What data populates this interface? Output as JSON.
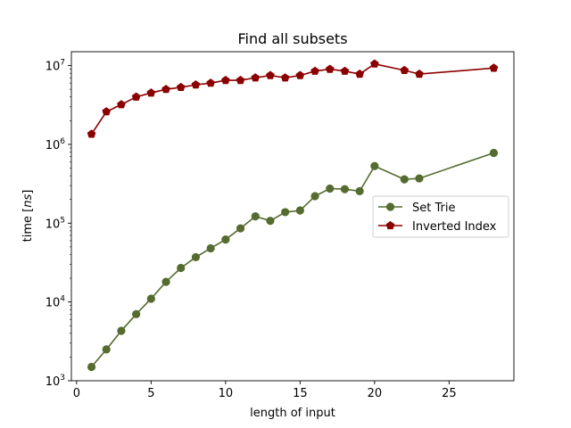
{
  "chart_data": {
    "type": "line",
    "title": "Find all subsets",
    "xlabel": "length of input",
    "ylabel_prefix": "time [",
    "ylabel_unit": "ns",
    "ylabel_suffix": "]",
    "x_scale": "linear",
    "y_scale": "log",
    "xlim": [
      -0.35,
      29.35
    ],
    "ylim": [
      1000,
      15000000
    ],
    "x_ticks": [
      0,
      5,
      10,
      15,
      20,
      25
    ],
    "x_tick_labels": [
      "0",
      "5",
      "10",
      "15",
      "20",
      "25"
    ],
    "y_ticks": [
      1000,
      10000,
      100000,
      1000000,
      10000000
    ],
    "y_tick_labels": [
      {
        "base": "10",
        "exp": "3"
      },
      {
        "base": "10",
        "exp": "4"
      },
      {
        "base": "10",
        "exp": "5"
      },
      {
        "base": "10",
        "exp": "6"
      },
      {
        "base": "10",
        "exp": "7"
      }
    ],
    "grid": false,
    "legend_position": "center-right",
    "series": [
      {
        "name": "Set Trie",
        "color": "#556b2f",
        "marker": "circle",
        "x": [
          1,
          2,
          3,
          4,
          5,
          6,
          7,
          8,
          9,
          10,
          11,
          12,
          13,
          14,
          15,
          16,
          17,
          18,
          19,
          20,
          22,
          23,
          28
        ],
        "y": [
          1500,
          2500,
          4300,
          7000,
          11000,
          18000,
          27000,
          37000,
          48000,
          62000,
          86000,
          122000,
          107000,
          138000,
          145000,
          220000,
          275000,
          270000,
          255000,
          530000,
          360000,
          370000,
          780000
        ]
      },
      {
        "name": "Inverted Index",
        "color": "#8b0000",
        "marker": "pentagon",
        "x": [
          1,
          2,
          3,
          4,
          5,
          6,
          7,
          8,
          9,
          10,
          11,
          12,
          13,
          14,
          15,
          16,
          17,
          18,
          19,
          20,
          22,
          23,
          28
        ],
        "y": [
          1350000,
          2600000,
          3200000,
          4000000,
          4500000,
          5000000,
          5300000,
          5700000,
          6000000,
          6500000,
          6500000,
          7000000,
          7500000,
          7000000,
          7500000,
          8500000,
          9000000,
          8500000,
          7800000,
          10500000,
          8700000,
          7800000,
          9300000
        ]
      }
    ]
  }
}
